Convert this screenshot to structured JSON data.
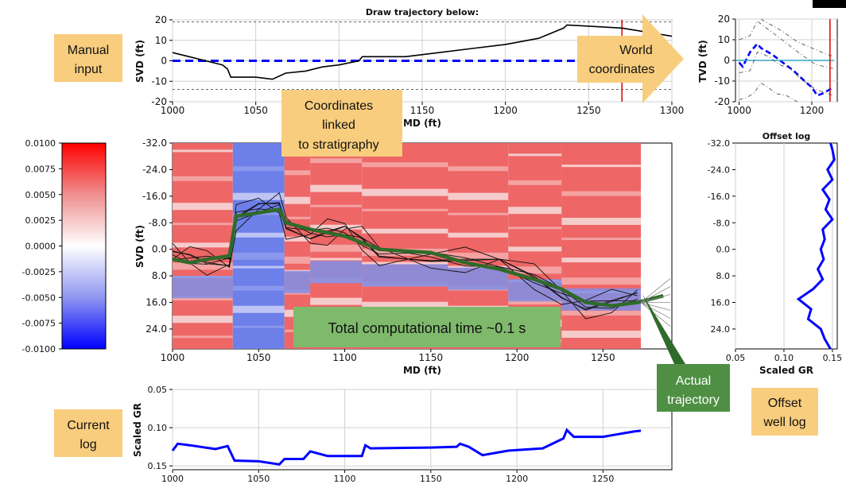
{
  "annotations": {
    "manual_input": [
      "Manual",
      "input"
    ],
    "world_coordinates": [
      "World",
      "coordinates"
    ],
    "linked": [
      "Coordinates",
      "linked",
      "to stratigraphy"
    ],
    "computational_time": "Total computational time ~0.1 s",
    "actual_trajectory": [
      "Actual",
      "trajectory"
    ],
    "offset_well_log": [
      "Offset",
      "well log"
    ],
    "current_log": [
      "Current",
      "log"
    ]
  },
  "colors": {
    "callout_fill": "#f8cd7e",
    "green_box": "#4e8f44",
    "green_box_text": "#ffffff",
    "dark_green": "#2f6b2a",
    "trajectory_blue": "#0000ff",
    "red_line": "#dd0000",
    "map_red": "#ee6666",
    "map_blue": "#6d7fe8"
  },
  "chart_data": [
    {
      "id": "manual",
      "type": "line",
      "title": "Draw trajectory below:",
      "xlabel": "MD (ft)",
      "ylabel": "SVD (ft)",
      "xlim": [
        1000,
        1300
      ],
      "ylim": [
        20,
        -20
      ],
      "xticks": [
        "1000",
        "1050",
        "1100",
        "1150",
        "1200",
        "1250",
        "1300"
      ],
      "yticks": [
        "-20",
        "-10",
        "0",
        "10",
        "20"
      ],
      "marker_md": 1270,
      "series": [
        {
          "values": [
            [
              1000,
              4
            ],
            [
              1010,
              2
            ],
            [
              1030,
              -2
            ],
            [
              1033,
              -4
            ],
            [
              1035,
              -8
            ],
            [
              1050,
              -8
            ],
            [
              1060,
              -9
            ],
            [
              1068,
              -6
            ],
            [
              1080,
              -5
            ],
            [
              1090,
              -3
            ],
            [
              1100,
              -2
            ],
            [
              1112,
              0
            ],
            [
              1114,
              2
            ],
            [
              1140,
              2
            ],
            [
              1160,
              4
            ],
            [
              1180,
              6
            ],
            [
              1200,
              8
            ],
            [
              1220,
              11
            ],
            [
              1235,
              16
            ],
            [
              1237,
              17.5
            ],
            [
              1270,
              16
            ],
            [
              1300,
              12
            ]
          ]
        },
        {
          "values": [
            [
              1000,
              0
            ],
            [
              1300,
              0
            ]
          ]
        }
      ],
      "hlines": [
        -14,
        19
      ]
    },
    {
      "id": "world",
      "type": "line",
      "xlabel": "",
      "ylabel": "TVD (ft)",
      "xlim": [
        990,
        1270
      ],
      "ylim": [
        20,
        -20
      ],
      "xticks": [
        "1000",
        "1200"
      ],
      "yticks": [
        "-20",
        "-10",
        "0",
        "10",
        "20"
      ],
      "marker_md": 1250,
      "series": [
        {
          "values": [
            [
              1000,
              -1
            ],
            [
              1010,
              -3
            ],
            [
              1030,
              4
            ],
            [
              1050,
              8
            ],
            [
              1060,
              6
            ],
            [
              1090,
              3
            ],
            [
              1120,
              -1
            ],
            [
              1150,
              -5
            ],
            [
              1180,
              -10
            ],
            [
              1200,
              -13
            ],
            [
              1215,
              -17
            ],
            [
              1230,
              -16
            ],
            [
              1250,
              -14
            ],
            [
              1260,
              -13
            ]
          ]
        },
        {
          "values": [
            [
              990,
              0
            ],
            [
              1260,
              0
            ]
          ]
        },
        {
          "values": [
            [
              1000,
              -19
            ],
            [
              1020,
              -18
            ],
            [
              1040,
              -16
            ],
            [
              1060,
              -11
            ],
            [
              1080,
              -13
            ],
            [
              1100,
              -16
            ],
            [
              1130,
              -17
            ],
            [
              1160,
              -20
            ]
          ]
        },
        {
          "values": [
            [
              1000,
              -6
            ],
            [
              1030,
              -5
            ],
            [
              1050,
              4
            ],
            [
              1080,
              2
            ],
            [
              1110,
              -2
            ],
            [
              1140,
              -4
            ],
            [
              1170,
              -9
            ],
            [
              1210,
              -14
            ],
            [
              1260,
              -17
            ]
          ]
        },
        {
          "values": [
            [
              1000,
              10
            ],
            [
              1030,
              12
            ],
            [
              1050,
              19
            ],
            [
              1080,
              15
            ],
            [
              1110,
              11
            ],
            [
              1140,
              7
            ],
            [
              1170,
              3
            ],
            [
              1210,
              -2
            ],
            [
              1260,
              -4
            ]
          ]
        },
        {
          "values": [
            [
              1060,
              20
            ],
            [
              1090,
              17
            ],
            [
              1120,
              14
            ],
            [
              1160,
              9
            ],
            [
              1200,
              6
            ],
            [
              1240,
              3
            ],
            [
              1260,
              2
            ]
          ]
        }
      ]
    },
    {
      "id": "main",
      "type": "heatmap",
      "xlabel": "MD (ft)",
      "ylabel": "SVD (ft)",
      "xlim": [
        1000,
        1290
      ],
      "ylim": [
        -32,
        30
      ],
      "xticks": [
        "1000",
        "1050",
        "1100",
        "1150",
        "1200",
        "1250"
      ],
      "yticks": [
        "-32.0",
        "-24.0",
        "-16.0",
        "-8.0",
        "0.0",
        "8.0",
        "16.0",
        "24.0"
      ],
      "colorbar": {
        "vmin": -0.01,
        "vmax": 0.01,
        "ticks": [
          "0.0100",
          "0.0075",
          "0.0050",
          "0.0025",
          "0.0000",
          "-0.0025",
          "-0.0050",
          "-0.0075",
          "-0.0100"
        ]
      },
      "blocks": [
        {
          "x0": 1000,
          "x1": 1035,
          "tint": "red",
          "offset": 0
        },
        {
          "x0": 1035,
          "x1": 1065,
          "tint": "blue",
          "offset": -10
        },
        {
          "x0": 1065,
          "x1": 1080,
          "tint": "red",
          "offset": -6
        },
        {
          "x0": 1080,
          "x1": 1110,
          "tint": "red",
          "offset": -18
        },
        {
          "x0": 1110,
          "x1": 1160,
          "tint": "red",
          "offset": -14
        },
        {
          "x0": 1160,
          "x1": 1195,
          "tint": "red",
          "offset": -10
        },
        {
          "x0": 1195,
          "x1": 1226,
          "tint": "red",
          "offset": 4
        },
        {
          "x0": 1226,
          "x1": 1272,
          "tint": "red",
          "offset": 15
        }
      ],
      "series": [
        {
          "values": [
            [
              1000,
              3
            ],
            [
              1010,
              4
            ],
            [
              1020,
              3
            ],
            [
              1033,
              2
            ],
            [
              1037,
              -10
            ],
            [
              1050,
              -11
            ],
            [
              1062,
              -12
            ],
            [
              1066,
              -8
            ],
            [
              1080,
              -6
            ],
            [
              1090,
              -5
            ],
            [
              1100,
              -4
            ],
            [
              1110,
              -2
            ],
            [
              1120,
              0
            ],
            [
              1150,
              1
            ],
            [
              1170,
              4
            ],
            [
              1190,
              6
            ],
            [
              1210,
              9
            ],
            [
              1226,
              12
            ],
            [
              1240,
              16
            ],
            [
              1255,
              17
            ],
            [
              1270,
              16
            ],
            [
              1285,
              14
            ]
          ]
        }
      ]
    },
    {
      "id": "offset",
      "type": "line",
      "title": "Offset log",
      "xlabel": "Scaled GR",
      "ylabel": "",
      "xlim": [
        0.05,
        0.155
      ],
      "ylim": [
        -32,
        30
      ],
      "xticks": [
        "0.05",
        "0.10",
        "0.15"
      ],
      "yticks": [
        "-32.0",
        "-24.0",
        "-16.0",
        "-8.0",
        "0.0",
        "8.0",
        "16.0",
        "24.0"
      ],
      "series": [
        {
          "values": [
            [
              0.148,
              -32
            ],
            [
              0.15,
              -30
            ],
            [
              0.152,
              -27
            ],
            [
              0.145,
              -24
            ],
            [
              0.15,
              -21
            ],
            [
              0.14,
              -18
            ],
            [
              0.147,
              -15
            ],
            [
              0.143,
              -12
            ],
            [
              0.15,
              -9
            ],
            [
              0.14,
              -6
            ],
            [
              0.142,
              -3
            ],
            [
              0.138,
              0
            ],
            [
              0.141,
              3
            ],
            [
              0.135,
              6
            ],
            [
              0.14,
              9
            ],
            [
              0.13,
              12
            ],
            [
              0.115,
              15
            ],
            [
              0.128,
              18
            ],
            [
              0.125,
              21
            ],
            [
              0.138,
              24
            ],
            [
              0.142,
              27
            ],
            [
              0.148,
              30
            ]
          ]
        }
      ]
    },
    {
      "id": "current",
      "type": "line",
      "xlabel": "",
      "ylabel": "Scaled GR",
      "xlim": [
        1000,
        1290
      ],
      "ylim": [
        0.05,
        0.155
      ],
      "xticks": [
        "1000",
        "1050",
        "1100",
        "1150",
        "1200",
        "1250"
      ],
      "yticks": [
        "0.05",
        "0.10",
        "0.15"
      ],
      "series": [
        {
          "values": [
            [
              1000,
              0.13
            ],
            [
              1003,
              0.121
            ],
            [
              1010,
              0.123
            ],
            [
              1025,
              0.128
            ],
            [
              1032,
              0.124
            ],
            [
              1036,
              0.143
            ],
            [
              1050,
              0.144
            ],
            [
              1062,
              0.148
            ],
            [
              1065,
              0.141
            ],
            [
              1076,
              0.141
            ],
            [
              1080,
              0.131
            ],
            [
              1090,
              0.137
            ],
            [
              1110,
              0.137
            ],
            [
              1112,
              0.123
            ],
            [
              1115,
              0.127
            ],
            [
              1150,
              0.126
            ],
            [
              1165,
              0.125
            ],
            [
              1167,
              0.121
            ],
            [
              1172,
              0.125
            ],
            [
              1180,
              0.136
            ],
            [
              1195,
              0.13
            ],
            [
              1215,
              0.127
            ],
            [
              1227,
              0.114
            ],
            [
              1229,
              0.103
            ],
            [
              1233,
              0.112
            ],
            [
              1250,
              0.112
            ],
            [
              1255,
              0.11
            ],
            [
              1268,
              0.105
            ],
            [
              1272,
              0.104
            ]
          ]
        }
      ]
    }
  ]
}
